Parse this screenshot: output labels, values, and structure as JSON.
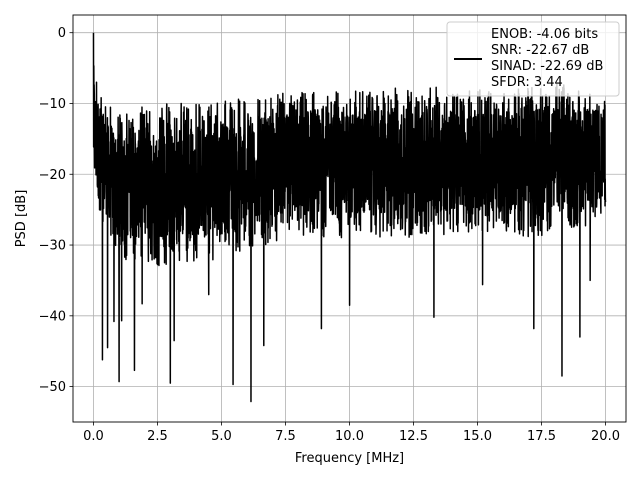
{
  "chart_data": {
    "type": "line",
    "title": "",
    "xlabel": "Frequency [MHz]",
    "ylabel": "PSD [dB]",
    "xlim": [
      -0.8,
      20.8
    ],
    "ylim": [
      -55,
      2.5
    ],
    "xticks": [
      0.0,
      2.5,
      5.0,
      7.5,
      10.0,
      12.5,
      15.0,
      17.5,
      20.0
    ],
    "xtick_labels": [
      "0.0",
      "2.5",
      "5.0",
      "7.5",
      "10.0",
      "12.5",
      "15.0",
      "17.5",
      "20.0"
    ],
    "yticks": [
      0,
      -10,
      -20,
      -30,
      -40,
      -50
    ],
    "ytick_labels": [
      "0",
      "−10",
      "−20",
      "−30",
      "−40",
      "−50"
    ],
    "grid": true,
    "legend_position": "top-right",
    "series": [
      {
        "color": "#000000",
        "legend_lines": [
          "ENOB: -4.06 bits",
          "SNR: -22.67 dB",
          "SINAD: -22.69 dB",
          "SFDR: 3.44"
        ],
        "x_range": [
          0,
          20
        ],
        "envelope_upper": [
          [
            0.0,
            0.0
          ],
          [
            0.05,
            -4.0
          ],
          [
            0.15,
            -6.0
          ],
          [
            0.5,
            -10.0
          ],
          [
            1.0,
            -11.0
          ],
          [
            2.5,
            -10.0
          ],
          [
            5.0,
            -9.5
          ],
          [
            7.5,
            -8.5
          ],
          [
            10.0,
            -8.0
          ],
          [
            12.5,
            -7.5
          ],
          [
            15.0,
            -8.0
          ],
          [
            17.5,
            -7.0
          ],
          [
            20.0,
            -8.0
          ]
        ],
        "envelope_lower": [
          [
            0.0,
            -25.0
          ],
          [
            1.0,
            -32.0
          ],
          [
            2.5,
            -33.0
          ],
          [
            5.0,
            -32.0
          ],
          [
            7.5,
            -29.0
          ],
          [
            10.0,
            -29.0
          ],
          [
            12.5,
            -29.0
          ],
          [
            15.0,
            -28.0
          ],
          [
            17.5,
            -29.0
          ],
          [
            20.0,
            -27.0
          ]
        ],
        "deep_dips": [
          [
            0.35,
            -46.2
          ],
          [
            0.55,
            -44.5
          ],
          [
            0.8,
            -40.8
          ],
          [
            1.0,
            -49.3
          ],
          [
            1.1,
            -40.7
          ],
          [
            1.6,
            -47.7
          ],
          [
            1.9,
            -38.3
          ],
          [
            3.0,
            -49.5
          ],
          [
            3.15,
            -43.5
          ],
          [
            4.5,
            -37.0
          ],
          [
            5.45,
            -49.7
          ],
          [
            6.15,
            -52.1
          ],
          [
            6.65,
            -44.2
          ],
          [
            8.9,
            -41.8
          ],
          [
            10.0,
            -38.5
          ],
          [
            13.3,
            -40.2
          ],
          [
            15.2,
            -35.6
          ],
          [
            17.2,
            -41.8
          ],
          [
            18.3,
            -48.5
          ],
          [
            19.0,
            -43.0
          ],
          [
            19.4,
            -35.0
          ]
        ]
      }
    ]
  }
}
